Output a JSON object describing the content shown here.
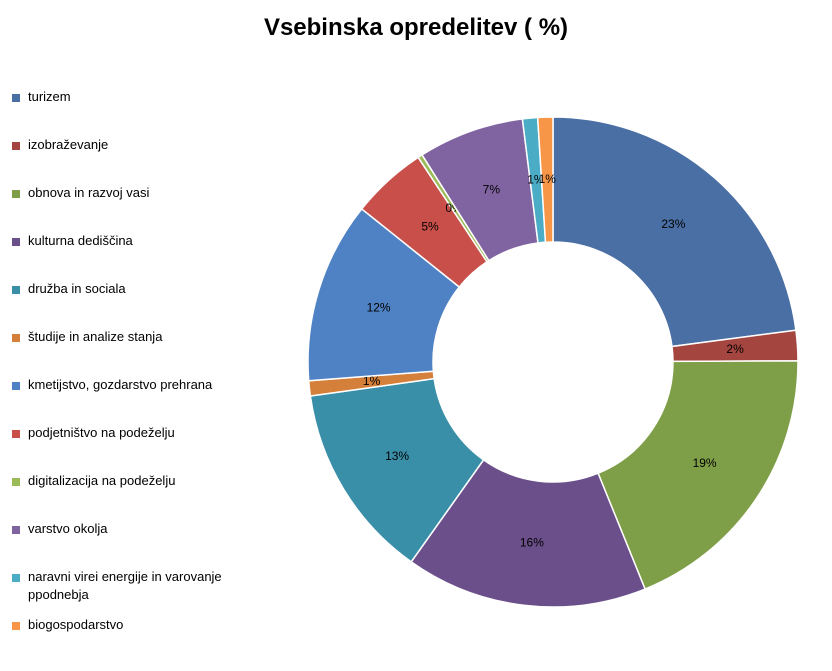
{
  "chart_data": {
    "type": "donut",
    "title": "Vsebinska opredelitev ( %)",
    "categories": [
      "turizem",
      "izobraževanje",
      "obnova in razvoj vasi",
      "kulturna dediščina",
      "družba in sociala",
      "študije in analize stanja",
      "kmetijstvo, gozdarstvo prehrana",
      "podjetništvo na podeželju",
      "digitalizacija na podeželju",
      "varstvo okolja",
      "naravni virei energije in varovanje ppodnebja",
      "biogospodarstvo"
    ],
    "values": [
      23,
      2,
      19,
      16,
      13,
      1,
      12,
      5,
      0.3,
      7,
      1,
      1
    ],
    "value_labels": [
      "23%",
      "2%",
      "19%",
      "16%",
      "13%",
      "1%",
      "12%",
      "5%",
      "0%",
      "7%",
      "1%",
      "1%"
    ],
    "colors": [
      "#4a6fa5",
      "#a5453f",
      "#7e9e48",
      "#6b4f8a",
      "#3a8fa8",
      "#d4803a",
      "#4f82c4",
      "#c9504a",
      "#9bbb59",
      "#8064a2",
      "#4bacc6",
      "#f79646"
    ],
    "legend": "left"
  }
}
